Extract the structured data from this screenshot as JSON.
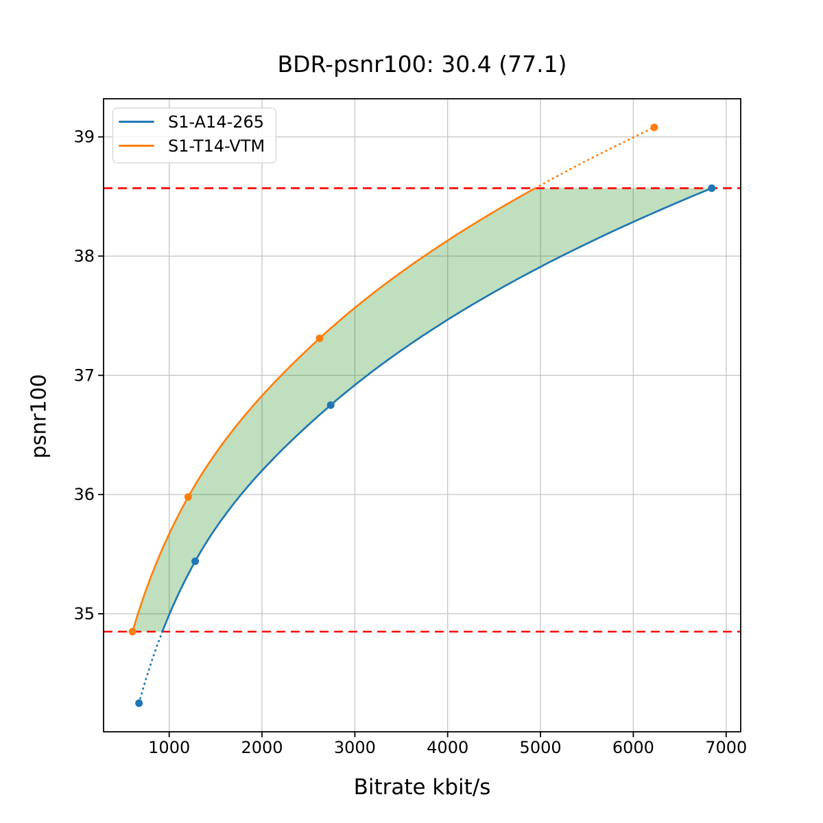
{
  "chart_data": {
    "type": "line",
    "title": "BDR-psnr100: 30.4 (77.1)",
    "xlabel": "Bitrate kbit/s",
    "ylabel": "psnr100",
    "xlim": [
      293,
      7157
    ],
    "ylim": [
      34.01,
      39.32
    ],
    "x_ticks": [
      1000,
      2000,
      3000,
      4000,
      5000,
      6000,
      7000
    ],
    "y_ticks": [
      35,
      36,
      37,
      38,
      39
    ],
    "grid": true,
    "grid_color": "#c8c8c8",
    "legend_position": "upper-left",
    "series": [
      {
        "name": "S1-A14-265",
        "color": "#1f77b4",
        "marker": "circle",
        "points": [
          [
            675,
            34.25
          ],
          [
            1280,
            35.44
          ],
          [
            2740,
            36.75
          ],
          [
            6845,
            38.57
          ]
        ]
      },
      {
        "name": "S1-T14-VTM",
        "color": "#ff7f0e",
        "marker": "circle",
        "points": [
          [
            605,
            34.85
          ],
          [
            1205,
            35.98
          ],
          [
            2620,
            37.31
          ],
          [
            6225,
            39.08
          ]
        ]
      }
    ],
    "overlap_band": {
      "psnr_low": 34.85,
      "psnr_high": 38.57,
      "line_color": "#ff0000",
      "line_style": "dashed",
      "fill_color": "#008000",
      "fill_opacity": 0.25
    },
    "notes": "solid curves inside band between red dashed lines; dotted extensions outside band; green fill between curves within band"
  }
}
